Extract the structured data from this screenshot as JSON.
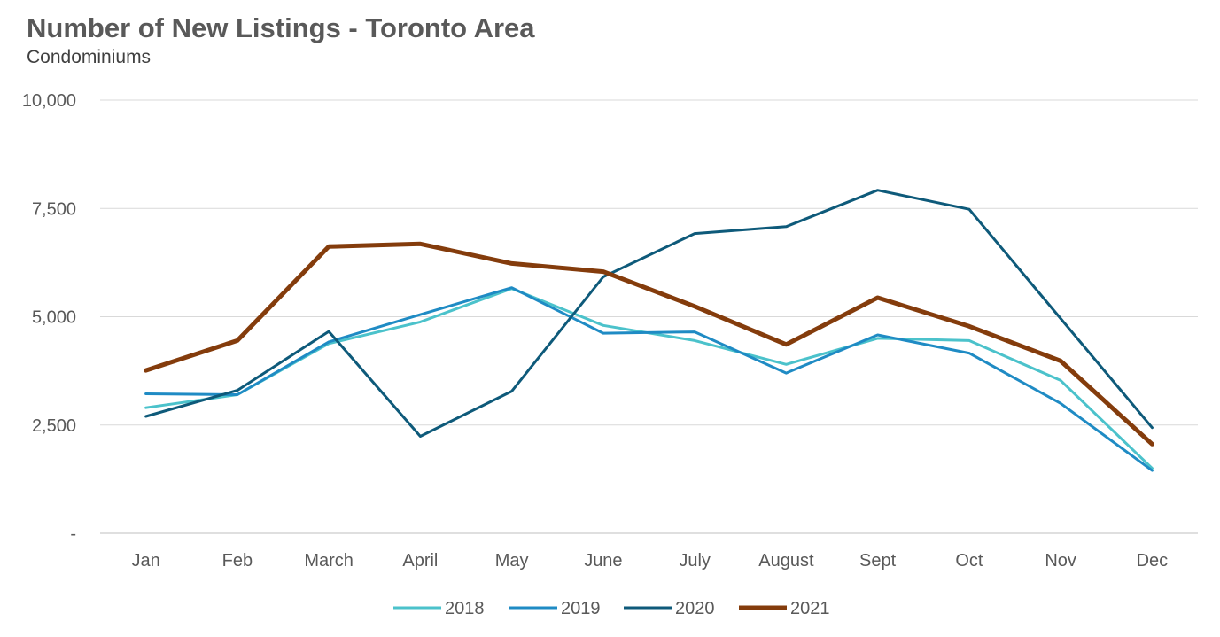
{
  "chart_data": {
    "type": "line",
    "title": "Number of New Listings - Toronto Area",
    "subtitle": "Condominiums",
    "xlabel": "",
    "ylabel": "",
    "categories": [
      "Jan",
      "Feb",
      "March",
      "April",
      "May",
      "June",
      "July",
      "August",
      "Sept",
      "Oct",
      "Nov",
      "Dec"
    ],
    "ylim": [
      0,
      10000
    ],
    "yticks": [
      0,
      2500,
      5000,
      7500,
      10000
    ],
    "ytick_labels": [
      "-",
      "2,500",
      "5,000",
      "7,500",
      "10,000"
    ],
    "grid": true,
    "legend_position": "bottom",
    "series": [
      {
        "name": "2018",
        "color": "#4BC2CB",
        "width": 3,
        "values": [
          2900,
          3200,
          4380,
          4880,
          5650,
          4800,
          4450,
          3900,
          4500,
          4450,
          3530,
          1500
        ]
      },
      {
        "name": "2019",
        "color": "#1F8BC4",
        "width": 3,
        "values": [
          3220,
          3200,
          4420,
          5050,
          5670,
          4620,
          4650,
          3700,
          4580,
          4160,
          3000,
          1450
        ]
      },
      {
        "name": "2020",
        "color": "#0E5A7A",
        "width": 3,
        "values": [
          2700,
          3300,
          4660,
          2240,
          3280,
          5920,
          6920,
          7080,
          7920,
          7480,
          4960,
          2440
        ]
      },
      {
        "name": "2021",
        "color": "#843C0C",
        "width": 5,
        "values": [
          3760,
          4450,
          6620,
          6680,
          6230,
          6040,
          5240,
          4360,
          5440,
          4780,
          3980,
          2060
        ]
      }
    ]
  }
}
